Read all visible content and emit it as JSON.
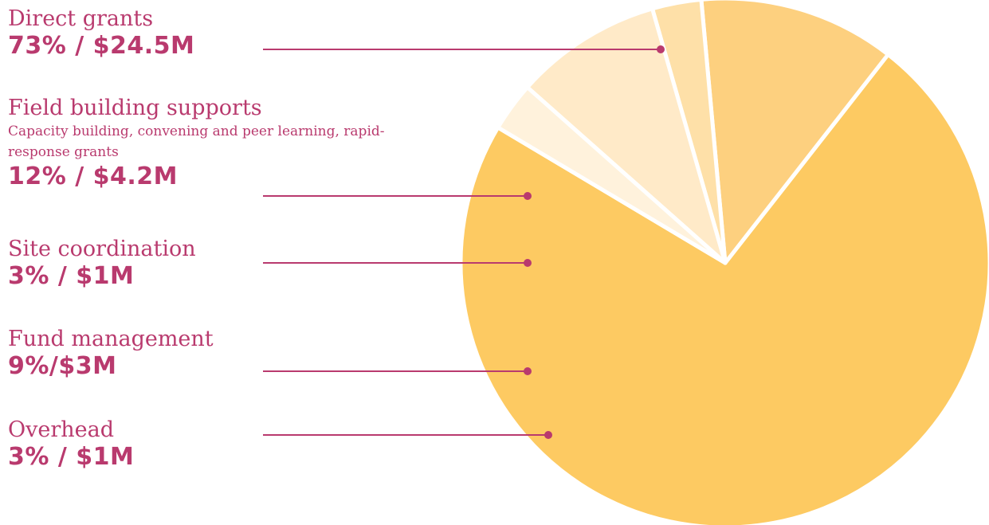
{
  "chart_data": {
    "type": "pie",
    "title": "",
    "slices": [
      {
        "label": "Direct grants",
        "value": 73,
        "amount": "$24.5M",
        "value_label": "73% / $24.5M",
        "color": "#fdca62"
      },
      {
        "label": "Field building supports",
        "description": "Capacity building, convening and peer learning, rapid-response grants",
        "value": 12,
        "amount": "$4.2M",
        "value_label": "12% / $4.2M",
        "color": "#fdd07f"
      },
      {
        "label": "Site coordination",
        "value": 3,
        "amount": "$1M",
        "value_label": "3% / $1M",
        "color": "#fee0a8"
      },
      {
        "label": "Fund management",
        "value": 9,
        "amount": "$3M",
        "value_label": "9%/$3M",
        "color": "#ffeac8"
      },
      {
        "label": "Overhead",
        "value": 3,
        "amount": "$1M",
        "value_label": "3% / $1M",
        "color": "#fff2dc"
      }
    ],
    "legend_position": "left",
    "colors": {
      "label_text": "#b93a6e",
      "leader_line": "#b93a6e",
      "separator": "#ffffff"
    }
  }
}
